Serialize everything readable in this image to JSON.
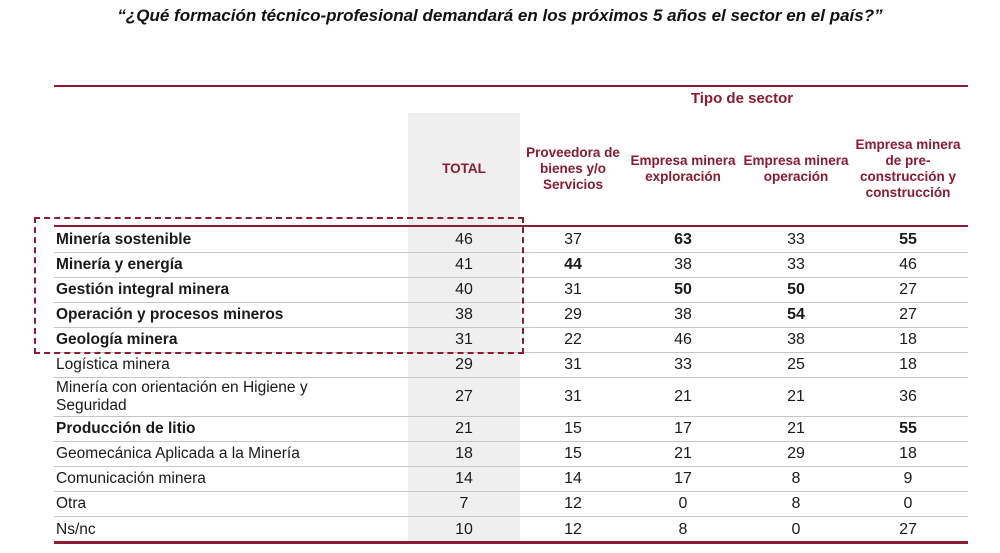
{
  "page": {
    "title": "“¿Qué formación técnico-profesional demandará en los próximos 5 años el sector en el país?”"
  },
  "chart_data": {
    "type": "table",
    "title": "¿Qué formación técnico-profesional demandará en los próximos 5 años el sector en el país?",
    "group_header": "Tipo de sector",
    "columns": [
      "TOTAL",
      "Proveedora de bienes y/o Servicios",
      "Empresa minera exploración",
      "Empresa minera operación",
      "Empresa minera de pre-construcción y construcción"
    ],
    "rows": [
      {
        "label": "Minería sostenible",
        "bold_label": true,
        "highlighted": true,
        "values": [
          46,
          37,
          63,
          33,
          55
        ],
        "bold_cells": [
          2,
          4
        ]
      },
      {
        "label": "Minería y energía",
        "bold_label": true,
        "highlighted": true,
        "values": [
          41,
          44,
          38,
          33,
          46
        ],
        "bold_cells": [
          1
        ]
      },
      {
        "label": "Gestión integral minera",
        "bold_label": true,
        "highlighted": true,
        "values": [
          40,
          31,
          50,
          50,
          27
        ],
        "bold_cells": [
          2,
          3
        ]
      },
      {
        "label": "Operación y procesos mineros",
        "bold_label": true,
        "highlighted": true,
        "values": [
          38,
          29,
          38,
          54,
          27
        ],
        "bold_cells": [
          3
        ]
      },
      {
        "label": "Geología minera",
        "bold_label": true,
        "highlighted": true,
        "values": [
          31,
          22,
          46,
          38,
          18
        ],
        "bold_cells": []
      },
      {
        "label": "Logística minera",
        "bold_label": false,
        "highlighted": false,
        "values": [
          29,
          31,
          33,
          25,
          18
        ],
        "bold_cells": []
      },
      {
        "label": "Minería con orientación en Higiene y Seguridad",
        "bold_label": false,
        "highlighted": false,
        "values": [
          27,
          31,
          21,
          21,
          36
        ],
        "bold_cells": []
      },
      {
        "label": "Producción de litio",
        "bold_label": true,
        "highlighted": false,
        "values": [
          21,
          15,
          17,
          21,
          55
        ],
        "bold_cells": [
          4
        ]
      },
      {
        "label": "Geomecánica Aplicada a la Minería",
        "bold_label": false,
        "highlighted": false,
        "values": [
          18,
          15,
          21,
          29,
          18
        ],
        "bold_cells": []
      },
      {
        "label": "Comunicación minera",
        "bold_label": false,
        "highlighted": false,
        "values": [
          14,
          14,
          17,
          8,
          9
        ],
        "bold_cells": []
      },
      {
        "label": "Otra",
        "bold_label": false,
        "highlighted": false,
        "values": [
          7,
          12,
          0,
          8,
          0
        ],
        "bold_cells": []
      },
      {
        "label": "Ns/nc",
        "bold_label": false,
        "highlighted": false,
        "values": [
          10,
          12,
          8,
          0,
          27
        ],
        "bold_cells": []
      }
    ],
    "highlight_note": "dashed maroon box around top 5 rows including TOTAL column",
    "colors": {
      "accent": "#8B1A35",
      "total_column_bg": "#EFEFEF",
      "separator": "#C6C6C6",
      "text": "#1A1A1A"
    }
  }
}
